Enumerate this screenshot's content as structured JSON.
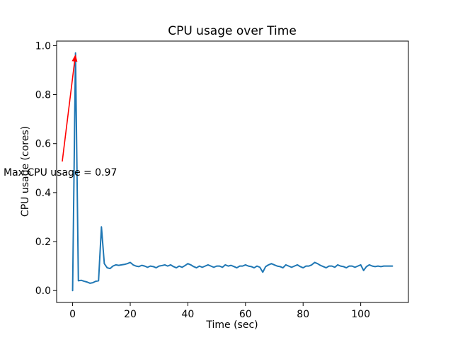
{
  "figure": {
    "background": "#ffffff",
    "spine_color": "#000000",
    "text_color": "#000000"
  },
  "chart_data": {
    "type": "line",
    "title": "CPU usage over Time",
    "xlabel": "Time (sec)",
    "ylabel": "CPU usage (cores)",
    "line_color": "#1f77b4",
    "grid": false,
    "legend": null,
    "xlim": [
      -5.55,
      116.55
    ],
    "ylim": [
      -0.0485,
      1.0185
    ],
    "xticks": [
      0,
      20,
      40,
      60,
      80,
      100
    ],
    "xtick_labels": [
      "0",
      "20",
      "40",
      "60",
      "80",
      "100"
    ],
    "yticks": [
      0.0,
      0.2,
      0.4,
      0.6,
      0.8,
      1.0
    ],
    "ytick_labels": [
      "0.0",
      "0.2",
      "0.4",
      "0.6",
      "0.8",
      "1.0"
    ],
    "x_start": 0,
    "x_step": 1,
    "values": [
      0.0,
      0.97,
      0.04,
      0.042,
      0.038,
      0.035,
      0.03,
      0.032,
      0.038,
      0.04,
      0.26,
      0.11,
      0.093,
      0.09,
      0.1,
      0.105,
      0.103,
      0.105,
      0.107,
      0.11,
      0.115,
      0.105,
      0.1,
      0.098,
      0.103,
      0.1,
      0.095,
      0.1,
      0.098,
      0.093,
      0.1,
      0.102,
      0.105,
      0.1,
      0.105,
      0.098,
      0.093,
      0.1,
      0.095,
      0.102,
      0.11,
      0.105,
      0.098,
      0.093,
      0.1,
      0.095,
      0.1,
      0.105,
      0.1,
      0.095,
      0.1,
      0.1,
      0.095,
      0.105,
      0.1,
      0.103,
      0.098,
      0.093,
      0.1,
      0.1,
      0.105,
      0.1,
      0.098,
      0.093,
      0.1,
      0.095,
      0.075,
      0.098,
      0.105,
      0.11,
      0.105,
      0.1,
      0.098,
      0.093,
      0.105,
      0.1,
      0.095,
      0.1,
      0.105,
      0.098,
      0.093,
      0.1,
      0.1,
      0.105,
      0.115,
      0.11,
      0.103,
      0.098,
      0.093,
      0.1,
      0.1,
      0.095,
      0.105,
      0.1,
      0.098,
      0.093,
      0.1,
      0.1,
      0.095,
      0.1,
      0.105,
      0.082,
      0.098,
      0.105,
      0.1,
      0.098,
      0.1,
      0.098,
      0.1,
      0.1,
      0.1,
      0.1
    ],
    "max_value": 0.97,
    "annotation": {
      "text": "Max CPU usage = 0.97",
      "color": "#ff0000",
      "xy": [
        1,
        0.97
      ],
      "xytext": [
        -24.3,
        0.47
      ],
      "arrow_start": [
        -3.6,
        0.527
      ]
    }
  }
}
